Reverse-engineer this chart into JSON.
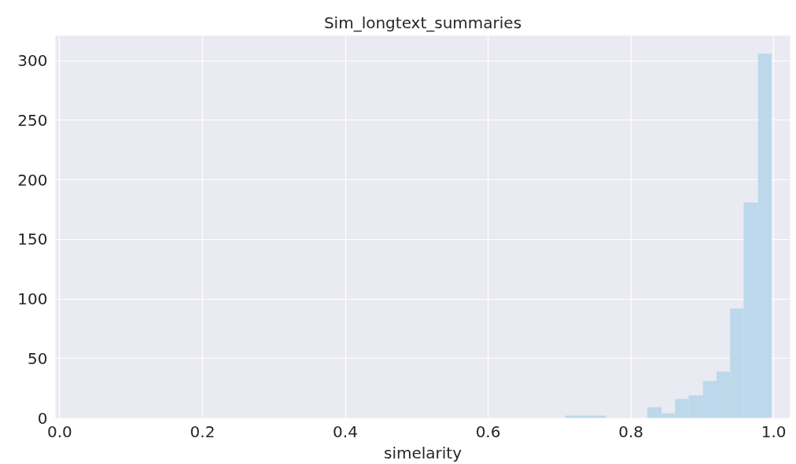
{
  "chart_data": {
    "type": "histogram",
    "title": "Sim_longtext_summaries",
    "xlabel": "simelarity",
    "bins": [
      0.708,
      0.727,
      0.746,
      0.765,
      0.823,
      0.843,
      0.862,
      0.881,
      0.901,
      0.92,
      0.939,
      0.958,
      0.978,
      0.997
    ],
    "values": [
      2,
      2,
      2,
      0,
      9,
      4,
      16,
      19,
      31,
      39,
      92,
      181,
      306
    ],
    "color": "#bcd8ea",
    "xlim": [
      -0.006,
      1.023
    ],
    "ylim": [
      0,
      321
    ],
    "xticks": [
      {
        "value": 0,
        "label": "0.0"
      },
      0.2,
      0.4,
      0.6,
      0.8,
      {
        "value": 1,
        "label": "1.0"
      }
    ],
    "yticks": [
      0,
      50,
      100,
      150,
      200,
      250,
      300
    ],
    "grid": true
  }
}
